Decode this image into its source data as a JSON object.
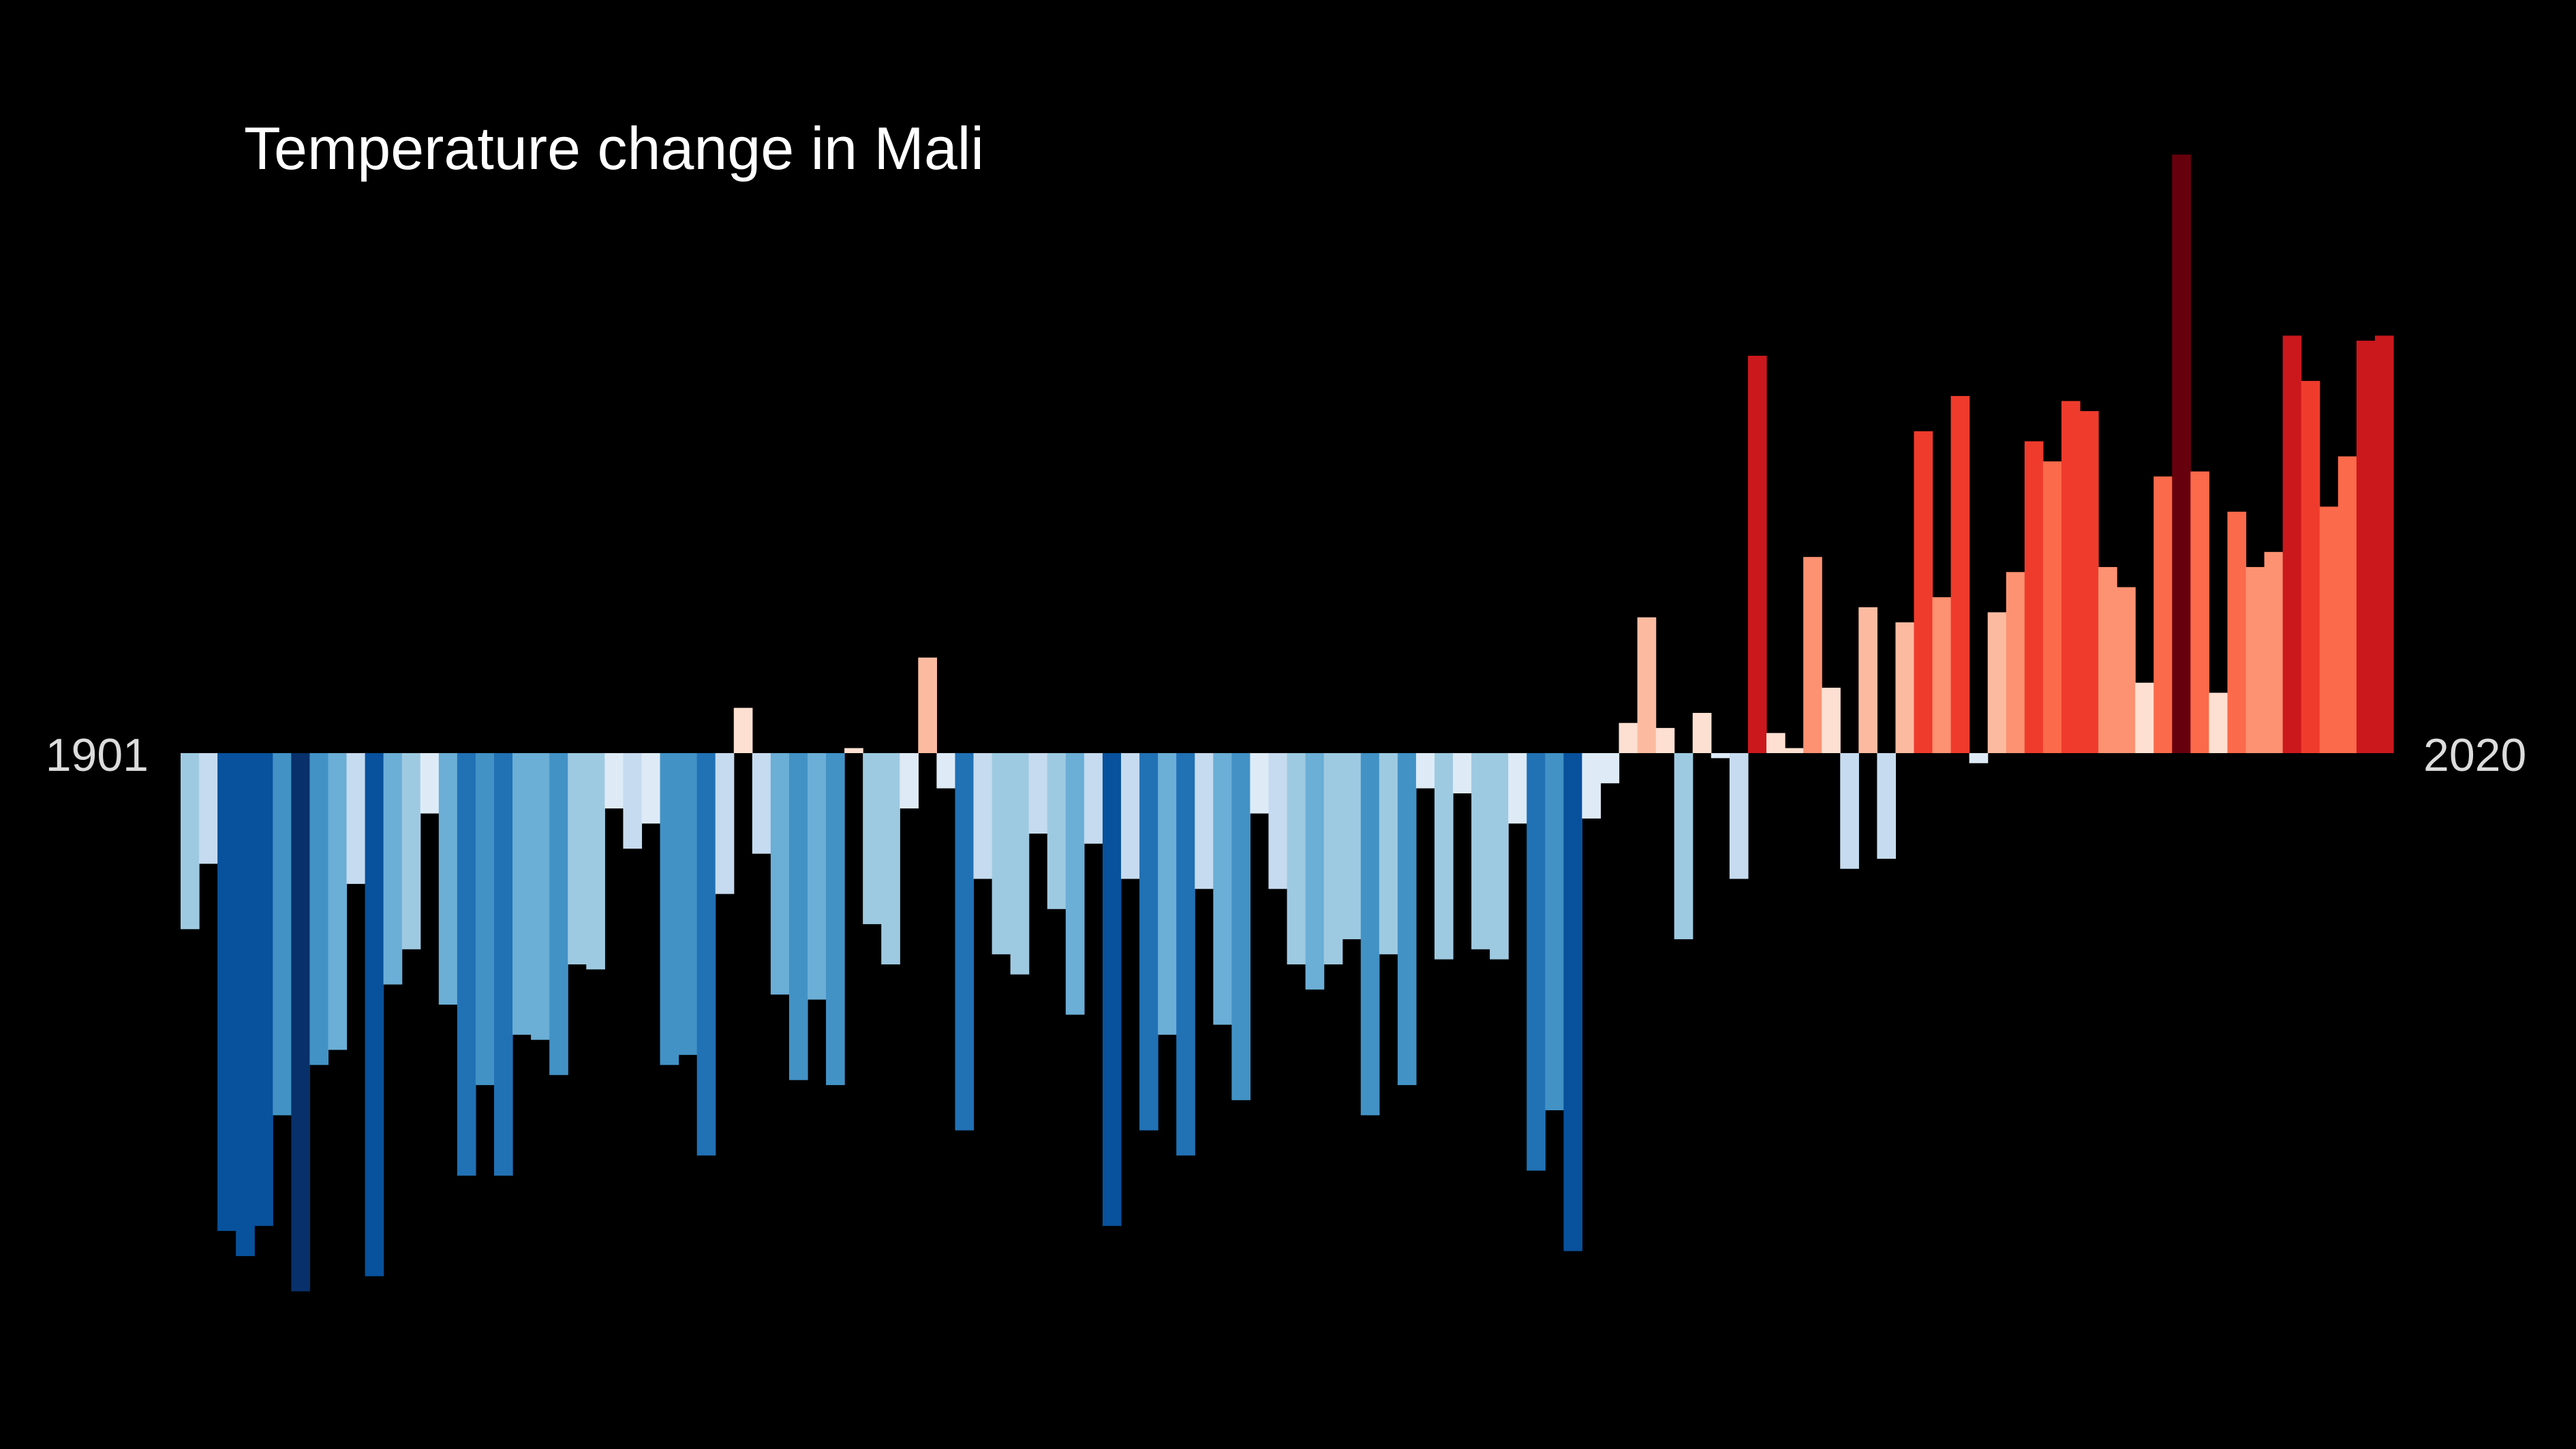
{
  "chart_data": {
    "type": "bar",
    "title": "Temperature change in Mali",
    "start_label": "1901",
    "end_label": "2020",
    "xlabel": "",
    "ylabel": "",
    "grid": false,
    "legend": "none",
    "x_start": 1901,
    "x_end": 2020,
    "ylim": [
      -1.0,
      1.1
    ],
    "values": [
      -0.35,
      -0.22,
      -0.95,
      -1.0,
      -0.94,
      -0.72,
      -1.07,
      -0.62,
      -0.59,
      -0.26,
      -1.04,
      -0.46,
      -0.39,
      -0.12,
      -0.5,
      -0.84,
      -0.66,
      -0.84,
      -0.56,
      -0.57,
      -0.64,
      -0.42,
      -0.43,
      -0.11,
      -0.19,
      -0.14,
      -0.62,
      -0.6,
      -0.8,
      -0.28,
      0.09,
      -0.2,
      -0.48,
      -0.65,
      -0.49,
      -0.66,
      0.01,
      -0.34,
      -0.42,
      -0.11,
      0.19,
      -0.07,
      -0.75,
      -0.25,
      -0.4,
      -0.44,
      -0.16,
      -0.31,
      -0.52,
      -0.18,
      -0.94,
      -0.25,
      -0.75,
      -0.56,
      -0.8,
      -0.27,
      -0.54,
      -0.69,
      -0.12,
      -0.27,
      -0.42,
      -0.47,
      -0.42,
      -0.37,
      -0.72,
      -0.4,
      -0.66,
      -0.07,
      -0.41,
      -0.08,
      -0.39,
      -0.41,
      -0.14,
      -0.83,
      -0.71,
      -0.99,
      -0.13,
      -0.06,
      0.06,
      0.27,
      0.05,
      -0.37,
      0.08,
      -0.01,
      -0.25,
      0.79,
      0.04,
      0.01,
      0.39,
      0.13,
      -0.23,
      0.29,
      -0.21,
      0.26,
      0.64,
      0.31,
      0.71,
      -0.02,
      0.28,
      0.36,
      0.62,
      0.58,
      0.7,
      0.68,
      0.37,
      0.33,
      0.14,
      0.55,
      1.19,
      0.56,
      0.12,
      0.48,
      0.37,
      0.4,
      0.83,
      0.74,
      0.49,
      0.59,
      0.82,
      0.83
    ],
    "palette": {
      "cold": [
        "#08306b",
        "#08519c",
        "#2171b5",
        "#4292c6",
        "#6baed6",
        "#9ecae1",
        "#c6dbef",
        "#deebf7"
      ],
      "warm": [
        "#fee0d2",
        "#fcbba1",
        "#fc9272",
        "#fb6a4a",
        "#ef3b2c",
        "#cb181d",
        "#a50f15",
        "#67000d"
      ]
    }
  }
}
